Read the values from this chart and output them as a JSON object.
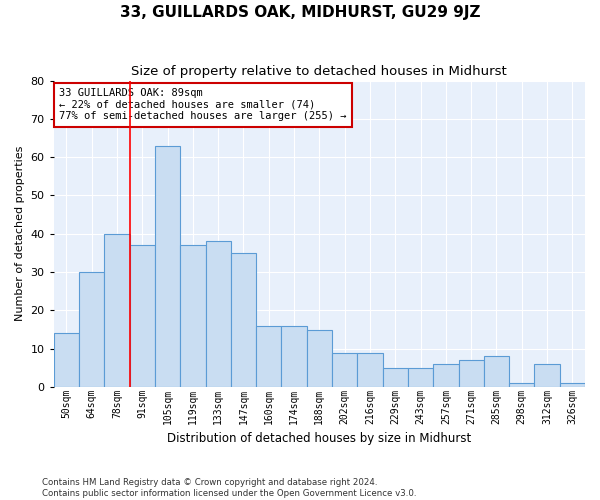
{
  "title": "33, GUILLARDS OAK, MIDHURST, GU29 9JZ",
  "subtitle": "Size of property relative to detached houses in Midhurst",
  "xlabel": "Distribution of detached houses by size in Midhurst",
  "ylabel": "Number of detached properties",
  "categories": [
    "50sqm",
    "64sqm",
    "78sqm",
    "91sqm",
    "105sqm",
    "119sqm",
    "133sqm",
    "147sqm",
    "160sqm",
    "174sqm",
    "188sqm",
    "202sqm",
    "216sqm",
    "229sqm",
    "243sqm",
    "257sqm",
    "271sqm",
    "285sqm",
    "298sqm",
    "312sqm",
    "326sqm"
  ],
  "values": [
    14,
    30,
    40,
    37,
    63,
    37,
    38,
    35,
    16,
    16,
    15,
    9,
    9,
    5,
    5,
    6,
    7,
    8,
    1,
    6,
    1
  ],
  "bar_color": "#c9ddf2",
  "bar_edge_color": "#5b9bd5",
  "bg_color": "#e8f0fb",
  "grid_color": "#ffffff",
  "annotation_text": "33 GUILLARDS OAK: 89sqm\n← 22% of detached houses are smaller (74)\n77% of semi-detached houses are larger (255) →",
  "annotation_box_color": "#ffffff",
  "annotation_box_edgecolor": "#cc0000",
  "footer": "Contains HM Land Registry data © Crown copyright and database right 2024.\nContains public sector information licensed under the Open Government Licence v3.0.",
  "ylim": [
    0,
    80
  ],
  "yticks": [
    0,
    10,
    20,
    30,
    40,
    50,
    60,
    70,
    80
  ],
  "redline_index": 2.5
}
